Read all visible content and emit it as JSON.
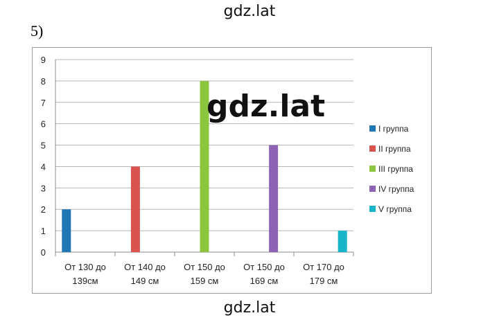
{
  "watermark_top": "gdz.lat",
  "watermark_middle": "gdz.lat",
  "watermark_bottom": "gdz.lat",
  "task_number": "5)",
  "chart_data": {
    "type": "bar",
    "categories": [
      [
        "От 130 до",
        "139см"
      ],
      [
        "От 140 до",
        "149 см"
      ],
      [
        "От 150 до",
        "159 см"
      ],
      [
        "От 150 до",
        "169 см"
      ],
      [
        "От 170 до",
        "179 см"
      ]
    ],
    "series": [
      {
        "name": "I группа",
        "color": "#1f77b4",
        "values": [
          2,
          null,
          null,
          null,
          null
        ]
      },
      {
        "name": "II группа",
        "color": "#d9534f",
        "values": [
          null,
          4,
          null,
          null,
          null
        ]
      },
      {
        "name": "III группа",
        "color": "#8cc63f",
        "values": [
          null,
          null,
          8,
          null,
          null
        ]
      },
      {
        "name": "IV группа",
        "color": "#8e63b3",
        "values": [
          null,
          null,
          null,
          5,
          null
        ]
      },
      {
        "name": "V группа",
        "color": "#17b3c8",
        "values": [
          null,
          null,
          null,
          null,
          1
        ]
      }
    ],
    "ylim": [
      0,
      9
    ],
    "yticks": [
      0,
      1,
      2,
      3,
      4,
      5,
      6,
      7,
      8,
      9
    ],
    "grid": true,
    "legend_position": "right",
    "title": "",
    "xlabel": "",
    "ylabel": ""
  }
}
